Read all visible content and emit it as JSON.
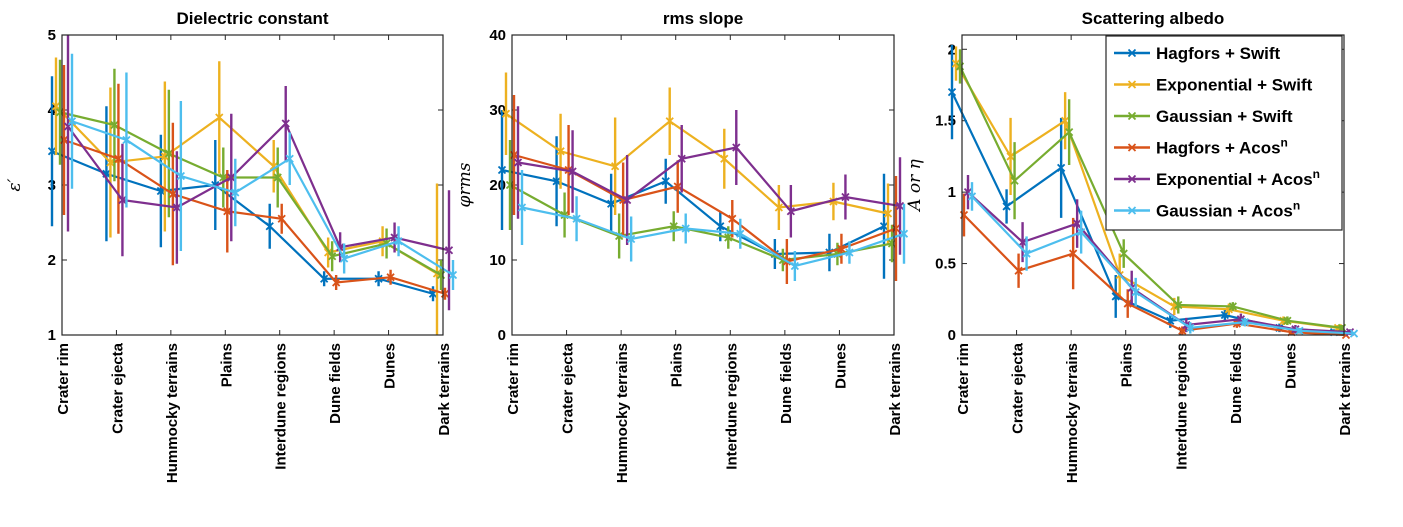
{
  "colors": {
    "Hagfors + Swift": "#0072BD",
    "Exponential + Swift": "#EDB120",
    "Gaussian + Swift": "#77AC30",
    "Hagfors + Acos": "#D95319",
    "Exponential + Acos": "#7E2F8E",
    "Gaussian + Acos": "#4DBEEE"
  },
  "legend": {
    "items": [
      {
        "label": "Hagfors + Swift",
        "sup": ""
      },
      {
        "label": "Exponential + Swift",
        "sup": ""
      },
      {
        "label": "Gaussian + Swift",
        "sup": ""
      },
      {
        "label": "Hagfors + Acos",
        "sup": "n"
      },
      {
        "label": "Exponential + Acos",
        "sup": "n"
      },
      {
        "label": "Gaussian + Acos",
        "sup": "n"
      }
    ],
    "placement": "top-right of third panel"
  },
  "chart_data": [
    {
      "type": "line",
      "title": "Dielectric constant",
      "ylabel": "ε′",
      "ylim": [
        1,
        5
      ],
      "yticks": [
        "1",
        "2",
        "3",
        "4",
        "5"
      ],
      "categories": [
        "Crater rim",
        "Crater ejecta",
        "Hummocky terrains",
        "Plains",
        "Interdune regions",
        "Dune fields",
        "Dunes",
        "Dark terrains"
      ],
      "series": [
        {
          "name": "Hagfors + Swift",
          "values": [
            3.45,
            3.15,
            2.92,
            3.0,
            2.45,
            1.75,
            1.75,
            1.55
          ],
          "err": [
            1.0,
            0.9,
            0.75,
            0.6,
            0.3,
            0.1,
            0.1,
            0.1
          ]
        },
        {
          "name": "Exponential + Swift",
          "values": [
            4.05,
            3.3,
            3.38,
            3.9,
            3.25,
            2.1,
            2.25,
            1.82
          ],
          "err": [
            0.65,
            1.0,
            1.0,
            0.75,
            0.35,
            0.2,
            0.2,
            1.2
          ]
        },
        {
          "name": "Gaussian + Swift",
          "values": [
            3.97,
            3.8,
            3.42,
            3.1,
            3.1,
            2.05,
            2.22,
            1.8
          ],
          "err": [
            0.7,
            0.75,
            0.85,
            0.4,
            0.4,
            0.2,
            0.2,
            0.2
          ]
        },
        {
          "name": "Hagfors + Acos",
          "values": [
            3.6,
            3.35,
            2.88,
            2.65,
            2.55,
            1.7,
            1.77,
            1.55
          ],
          "err": [
            1.0,
            1.0,
            0.95,
            0.55,
            0.2,
            0.1,
            0.1,
            0.08
          ]
        },
        {
          "name": "Exponential + Acos",
          "values": [
            3.78,
            2.8,
            2.7,
            3.1,
            3.82,
            2.17,
            2.3,
            2.13
          ],
          "err": [
            1.4,
            0.75,
            0.75,
            0.85,
            0.5,
            0.2,
            0.2,
            0.8
          ]
        },
        {
          "name": "Gaussian + Acos",
          "values": [
            3.85,
            3.6,
            3.12,
            2.9,
            3.35,
            2.02,
            2.25,
            1.8
          ],
          "err": [
            0.9,
            0.9,
            1.0,
            0.45,
            0.35,
            0.2,
            0.2,
            0.2
          ]
        }
      ]
    },
    {
      "type": "line",
      "title": "rms slope",
      "ylabel": "φrms",
      "ylim": [
        0,
        40
      ],
      "yticks": [
        "0",
        "10",
        "20",
        "30",
        "40"
      ],
      "categories": [
        "Crater rim",
        "Crater ejecta",
        "Hummocky terrains",
        "Plains",
        "Interdune regions",
        "Dune fields",
        "Dunes",
        "Dark terrains"
      ],
      "series": [
        {
          "name": "Hagfors + Swift",
          "values": [
            22,
            20.5,
            17.5,
            20.5,
            14.5,
            10.8,
            11.0,
            14.5
          ],
          "err": [
            8,
            6,
            4,
            3,
            2,
            2,
            2.5,
            7
          ]
        },
        {
          "name": "Exponential + Swift",
          "values": [
            29.5,
            24.5,
            22.5,
            28.5,
            23.5,
            17.0,
            17.8,
            16.2
          ],
          "err": [
            5.5,
            5,
            6.5,
            4.5,
            4,
            3,
            2.5,
            4
          ]
        },
        {
          "name": "Gaussian + Swift",
          "values": [
            20,
            16.0,
            13.2,
            14.5,
            13.0,
            10.0,
            10.8,
            12.2
          ],
          "err": [
            6,
            3,
            3,
            2,
            1.5,
            1.5,
            1.5,
            2.5
          ]
        },
        {
          "name": "Hagfors + Acos",
          "values": [
            24.0,
            22.0,
            18.0,
            19.8,
            15.5,
            9.8,
            11.5,
            14.2
          ],
          "err": [
            8,
            6,
            5,
            3.5,
            2.5,
            3,
            2,
            7
          ]
        },
        {
          "name": "Exponential + Acos",
          "values": [
            23.0,
            21.8,
            18.0,
            23.5,
            25.0,
            16.5,
            18.4,
            17.2
          ],
          "err": [
            7.5,
            5.5,
            6,
            4.5,
            5,
            3.5,
            3,
            6.5
          ]
        },
        {
          "name": "Gaussian + Acos",
          "values": [
            17.0,
            15.5,
            12.8,
            14.2,
            13.5,
            9.2,
            11.0,
            13.5
          ],
          "err": [
            5,
            3,
            3,
            2,
            2,
            2,
            1.5,
            4
          ]
        }
      ]
    },
    {
      "type": "line",
      "title": "Scattering albedo",
      "ylabel": "A or η",
      "ylim": [
        0,
        2.1
      ],
      "yticks": [
        "0",
        "0.5",
        "1",
        "1.5",
        "2"
      ],
      "categories": [
        "Crater rim",
        "Crater ejecta",
        "Hummocky terrains",
        "Plains",
        "Interdune regions",
        "Dune fields",
        "Dunes",
        "Dark terrains"
      ],
      "series": [
        {
          "name": "Hagfors + Swift",
          "values": [
            1.7,
            0.9,
            1.17,
            0.27,
            0.1,
            0.14,
            0.05,
            0.02
          ],
          "err": [
            0.33,
            0.12,
            0.35,
            0.15,
            0.05,
            0.04,
            0.03,
            0.02
          ]
        },
        {
          "name": "Exponential + Swift",
          "values": [
            1.9,
            1.25,
            1.5,
            0.42,
            0.2,
            0.18,
            0.1,
            0.05
          ],
          "err": [
            0.12,
            0.27,
            0.2,
            0.15,
            0.06,
            0.04,
            0.03,
            0.02
          ]
        },
        {
          "name": "Gaussian + Swift",
          "values": [
            1.88,
            1.08,
            1.42,
            0.57,
            0.21,
            0.2,
            0.1,
            0.05
          ],
          "err": [
            0.12,
            0.27,
            0.23,
            0.1,
            0.06,
            0.03,
            0.03,
            0.02
          ]
        },
        {
          "name": "Hagfors + Acos",
          "values": [
            0.84,
            0.45,
            0.57,
            0.22,
            0.03,
            0.08,
            0.02,
            0.0
          ],
          "err": [
            0.15,
            0.12,
            0.25,
            0.1,
            0.03,
            0.03,
            0.02,
            0.01
          ]
        },
        {
          "name": "Exponential + Acos",
          "values": [
            1.0,
            0.65,
            0.78,
            0.33,
            0.07,
            0.11,
            0.04,
            0.02
          ],
          "err": [
            0.12,
            0.14,
            0.17,
            0.12,
            0.05,
            0.04,
            0.03,
            0.02
          ]
        },
        {
          "name": "Gaussian + Acos",
          "values": [
            0.97,
            0.57,
            0.72,
            0.3,
            0.05,
            0.09,
            0.03,
            0.01
          ],
          "err": [
            0.1,
            0.12,
            0.15,
            0.1,
            0.04,
            0.03,
            0.02,
            0.01
          ]
        }
      ]
    }
  ]
}
